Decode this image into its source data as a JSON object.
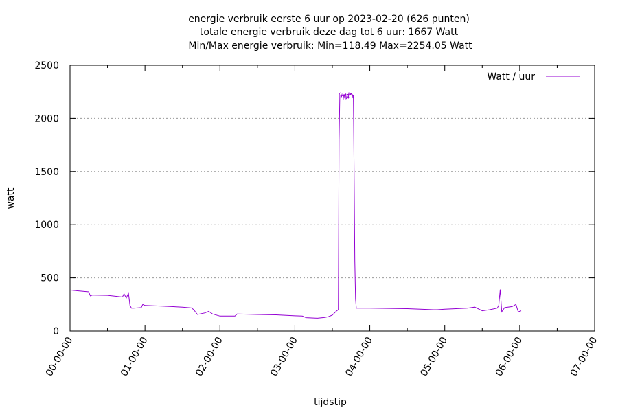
{
  "chart_data": {
    "type": "line",
    "title_lines": [
      "energie verbruik eerste 6 uur op 2023-02-20 (626 punten)",
      "totale energie verbruik deze dag tot 6 uur: 1667 Watt",
      "Min/Max energie verbruik: Min=118.49 Max=2254.05 Watt"
    ],
    "xlabel": "tijdstip",
    "ylabel": "watt",
    "xlim": [
      0,
      7
    ],
    "ylim": [
      0,
      2500
    ],
    "x_unit": "hours",
    "x_ticks": [
      {
        "value": 0,
        "label": "00-00-00"
      },
      {
        "value": 1,
        "label": "01-00-00"
      },
      {
        "value": 2,
        "label": "02-00-00"
      },
      {
        "value": 3,
        "label": "03-00-00"
      },
      {
        "value": 4,
        "label": "04-00-00"
      },
      {
        "value": 5,
        "label": "05-00-00"
      },
      {
        "value": 6,
        "label": "06-00-00"
      },
      {
        "value": 7,
        "label": "07-00-00"
      }
    ],
    "y_ticks": [
      {
        "value": 0,
        "label": "0"
      },
      {
        "value": 500,
        "label": "500"
      },
      {
        "value": 1000,
        "label": "1000"
      },
      {
        "value": 1500,
        "label": "1500"
      },
      {
        "value": 2000,
        "label": "2000"
      },
      {
        "value": 2500,
        "label": "2500"
      }
    ],
    "grid": "horizontal dotted",
    "legend_position": "top-right",
    "series": [
      {
        "name": "Watt / uur",
        "color": "#9400d3",
        "x": [
          0.0,
          0.1,
          0.25,
          0.27,
          0.3,
          0.5,
          0.7,
          0.72,
          0.75,
          0.78,
          0.8,
          0.82,
          0.85,
          0.95,
          0.97,
          1.0,
          1.2,
          1.5,
          1.62,
          1.65,
          1.7,
          1.8,
          1.85,
          1.9,
          2.0,
          2.2,
          2.23,
          2.5,
          2.75,
          3.0,
          3.1,
          3.15,
          3.3,
          3.4,
          3.45,
          3.5,
          3.55,
          3.58,
          3.59,
          3.6,
          3.65,
          3.7,
          3.75,
          3.78,
          3.79,
          3.8,
          3.81,
          3.82,
          4.0,
          4.5,
          4.85,
          4.9,
          5.0,
          5.3,
          5.4,
          5.5,
          5.6,
          5.7,
          5.72,
          5.74,
          5.76,
          5.8,
          5.9,
          5.95,
          5.98,
          6.02
        ],
        "y": [
          385,
          378,
          368,
          330,
          338,
          335,
          320,
          350,
          310,
          355,
          240,
          215,
          215,
          220,
          250,
          240,
          235,
          225,
          218,
          200,
          155,
          170,
          185,
          160,
          140,
          140,
          160,
          155,
          152,
          143,
          140,
          125,
          120,
          128,
          135,
          150,
          185,
          200,
          1800,
          2220,
          2210,
          2225,
          2230,
          2215,
          1500,
          660,
          300,
          215,
          215,
          210,
          200,
          200,
          205,
          215,
          225,
          190,
          200,
          215,
          240,
          390,
          180,
          220,
          230,
          250,
          180,
          190
        ]
      }
    ]
  }
}
